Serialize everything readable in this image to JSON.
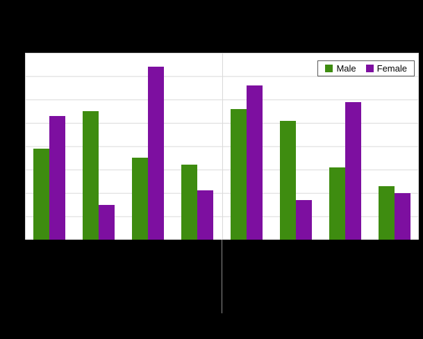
{
  "canvas": {
    "background": "#000000",
    "plot_background": "#ffffff",
    "gridline_color": "#d9d9d9"
  },
  "legend": {
    "items": [
      {
        "label": "Male",
        "color": "#3e8c10"
      },
      {
        "label": "Female",
        "color": "#7d0fa0"
      }
    ]
  },
  "chart_data": {
    "type": "bar",
    "categories": [
      "",
      "",
      "",
      "",
      "",
      "",
      "",
      ""
    ],
    "series": [
      {
        "name": "Male",
        "color": "#3e8c10",
        "values": [
          39,
          55,
          35,
          32,
          56,
          51,
          31,
          23
        ]
      },
      {
        "name": "Female",
        "color": "#7d0fa0",
        "values": [
          53,
          15,
          74,
          21,
          66,
          17,
          59,
          20
        ]
      }
    ],
    "title": "",
    "xlabel": "",
    "ylabel": "",
    "ylim": [
      0,
      80
    ],
    "gridline_interval": 10,
    "grid": true,
    "legend_position": "top-right",
    "category_group_separator_after_index": 3
  }
}
